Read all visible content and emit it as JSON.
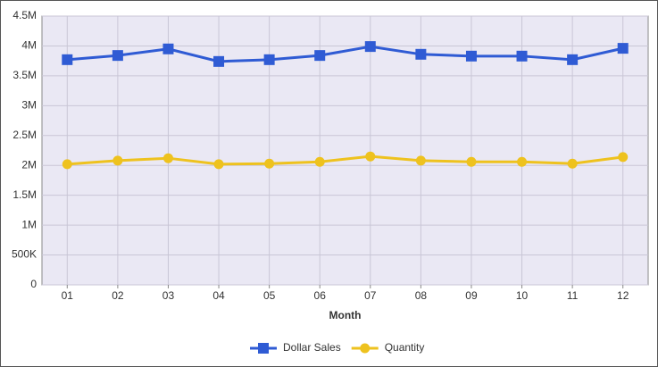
{
  "chart_data": {
    "type": "line",
    "x_label": "Month",
    "categories": [
      "01",
      "02",
      "03",
      "04",
      "05",
      "06",
      "07",
      "08",
      "09",
      "10",
      "11",
      "12"
    ],
    "series": [
      {
        "name": "Dollar Sales",
        "color": "#2f5bd4",
        "marker": "square",
        "values": [
          3770000,
          3840000,
          3950000,
          3740000,
          3770000,
          3840000,
          3990000,
          3860000,
          3830000,
          3830000,
          3770000,
          3960000
        ]
      },
      {
        "name": "Quantity",
        "color": "#eec21e",
        "marker": "circle",
        "values": [
          2020000,
          2080000,
          2120000,
          2020000,
          2030000,
          2060000,
          2150000,
          2080000,
          2060000,
          2060000,
          2030000,
          2140000
        ]
      }
    ],
    "ylim": [
      0,
      4500000
    ],
    "yticks": [
      0,
      {
        "value": 500000,
        "label": "500K"
      },
      {
        "value": 1000000,
        "label": "1M"
      },
      {
        "value": 1500000,
        "label": "1.5M"
      },
      {
        "value": 2000000,
        "label": "2M"
      },
      {
        "value": 2500000,
        "label": "2.5M"
      },
      {
        "value": 3000000,
        "label": "3M"
      },
      {
        "value": 3500000,
        "label": "3.5M"
      },
      {
        "value": 4000000,
        "label": "4M"
      },
      {
        "value": 4500000,
        "label": "4.5M"
      }
    ],
    "grid": true,
    "legend_position": "bottom"
  }
}
